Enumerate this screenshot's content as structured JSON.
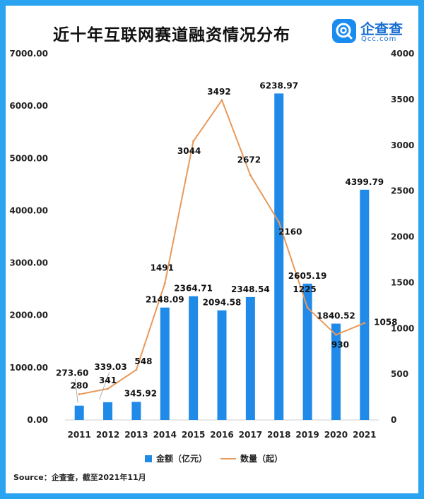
{
  "title": "近十年互联网赛道融资情况分布",
  "logo": {
    "name": "企查查",
    "domain": "Qcc.com",
    "color": "#1a8cf0"
  },
  "source": "Source：企查查，截至2021年11月",
  "chart_data": {
    "type": "bar",
    "categories": [
      "2011",
      "2012",
      "2013",
      "2014",
      "2015",
      "2016",
      "2017",
      "2018",
      "2019",
      "2020",
      "2021"
    ],
    "series": [
      {
        "name": "金额（亿元）",
        "type": "bar",
        "axis": "left",
        "color": "#1f8ae8",
        "values": [
          273.6,
          339.03,
          345.92,
          2148.09,
          2364.71,
          2094.58,
          2348.54,
          6238.97,
          2605.19,
          1840.52,
          4399.79
        ],
        "labels": [
          "273.60",
          "339.03",
          "345.92",
          "2148.09",
          "2364.71",
          "2094.58",
          "2348.54",
          "6238.97",
          "2605.19",
          "1840.52",
          "4399.79"
        ]
      },
      {
        "name": "数量（起）",
        "type": "line",
        "axis": "right",
        "color": "#e8995a",
        "values": [
          280,
          341,
          548,
          1491,
          3044,
          3492,
          2672,
          2160,
          1225,
          930,
          1058
        ],
        "labels": [
          "280",
          "341",
          "548",
          "1491",
          "3044",
          "3492",
          "2672",
          "2160",
          "1225",
          "930",
          "1058"
        ]
      }
    ],
    "y_left": {
      "min": 0,
      "max": 7000,
      "ticks": [
        "0.00",
        "1000.00",
        "2000.00",
        "3000.00",
        "4000.00",
        "5000.00",
        "6000.00",
        "7000.00"
      ]
    },
    "y_right": {
      "min": 0,
      "max": 4000,
      "ticks": [
        "0",
        "500",
        "1000",
        "1500",
        "2000",
        "2500",
        "3000",
        "3500",
        "4000"
      ]
    },
    "grid": false,
    "legend_position": "bottom"
  }
}
